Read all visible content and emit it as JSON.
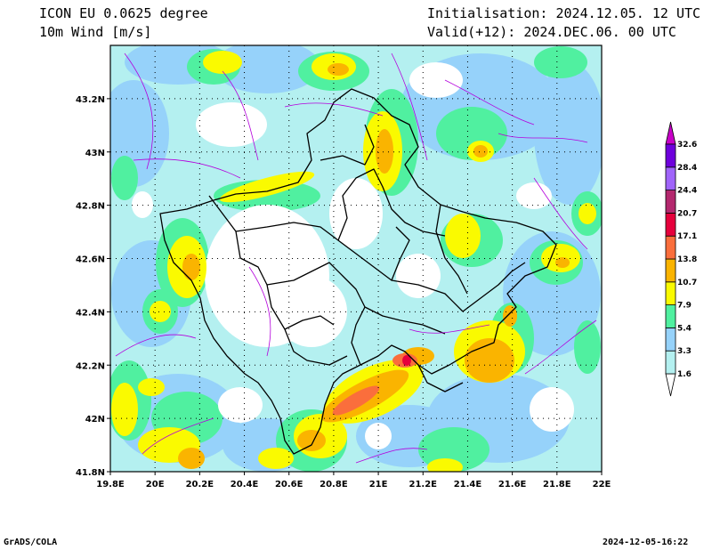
{
  "header": {
    "model": "ICON EU 0.0625 degree",
    "variable": "10m Wind [m/s]",
    "init": "Initialisation: 2024.12.05. 12 UTC",
    "valid": "Valid(+12): 2024.DEC.06. 00 UTC"
  },
  "footer": {
    "left": "GrADS/COLA",
    "right": "2024-12-05-16:22"
  },
  "map": {
    "lon_range": [
      19.8,
      22.0
    ],
    "lat_range": [
      41.8,
      43.4
    ],
    "lon_ticks": [
      "19.8E",
      "20E",
      "20.2E",
      "20.4E",
      "20.6E",
      "20.8E",
      "21E",
      "21.2E",
      "21.4E",
      "21.6E",
      "21.8E",
      "22E"
    ],
    "lat_ticks": [
      "41.8N",
      "42N",
      "42.2N",
      "42.4N",
      "42.6N",
      "42.8N",
      "43N",
      "43.2N"
    ],
    "grid": true
  },
  "colorbar": {
    "levels": [
      "1.6",
      "3.3",
      "5.4",
      "7.9",
      "10.7",
      "13.8",
      "17.1",
      "20.7",
      "24.4",
      "28.4",
      "32.6"
    ],
    "colors": [
      "#ffffff",
      "#b4f0f0",
      "#96d2fa",
      "#50f0a0",
      "#fafa00",
      "#fab400",
      "#fa6e3c",
      "#e6003c",
      "#b4286e",
      "#a064fa",
      "#6e00dc",
      "#c800c8"
    ]
  }
}
